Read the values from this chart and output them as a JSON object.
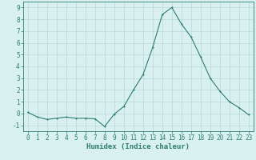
{
  "x": [
    0,
    1,
    2,
    3,
    4,
    5,
    6,
    7,
    8,
    9,
    10,
    11,
    12,
    13,
    14,
    15,
    16,
    17,
    18,
    19,
    20,
    21,
    22,
    23
  ],
  "y": [
    0.1,
    -0.3,
    -0.5,
    -0.4,
    -0.3,
    -0.4,
    -0.4,
    -0.45,
    -1.1,
    -0.05,
    0.6,
    2.0,
    3.3,
    5.6,
    8.4,
    9.0,
    7.6,
    6.5,
    4.8,
    3.0,
    1.9,
    1.0,
    0.5,
    -0.1
  ],
  "line_color": "#2e7d6e",
  "marker": "D",
  "marker_size": 2.0,
  "bg_color": "#d8f0f0",
  "grid_color": "#b8d8d8",
  "xlabel": "Humidex (Indice chaleur)",
  "xlim": [
    -0.5,
    23.5
  ],
  "ylim": [
    -1.5,
    9.5
  ],
  "xticks": [
    0,
    1,
    2,
    3,
    4,
    5,
    6,
    7,
    8,
    9,
    10,
    11,
    12,
    13,
    14,
    15,
    16,
    17,
    18,
    19,
    20,
    21,
    22,
    23
  ],
  "yticks": [
    -1,
    0,
    1,
    2,
    3,
    4,
    5,
    6,
    7,
    8,
    9
  ],
  "tick_label_fontsize": 5.5,
  "xlabel_fontsize": 6.5,
  "axis_color": "#2e7d6e",
  "spine_color": "#2e7d6e"
}
